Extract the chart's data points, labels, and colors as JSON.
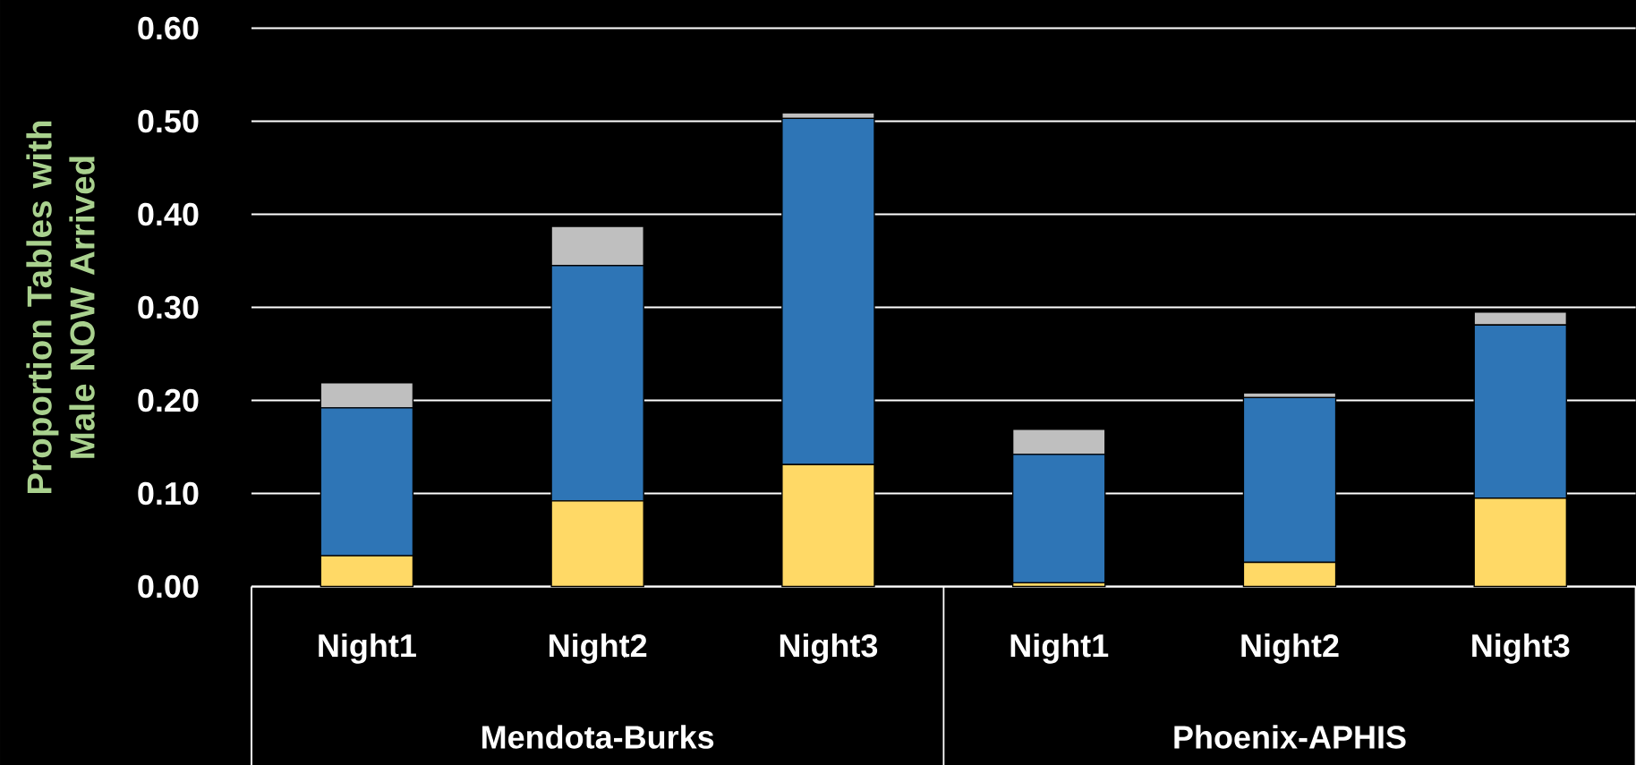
{
  "chart_data": {
    "type": "bar",
    "stacked": true,
    "ylabel": "Proportion Tables with Male NOW Arrived",
    "categories": [
      "Night1",
      "Night2",
      "Night3",
      "Night1",
      "Night2",
      "Night3"
    ],
    "annotations": [
      "Mendota-Burks",
      "Phoenix-APHIS"
    ],
    "series": [
      {
        "color": "#ffd966",
        "values": [
          0.033,
          0.092,
          0.131,
          0.004,
          0.026,
          0.095
        ]
      },
      {
        "color": "#2e75b6",
        "values": [
          0.159,
          0.253,
          0.372,
          0.138,
          0.177,
          0.186
        ]
      },
      {
        "color": "#bfbfbf",
        "values": [
          0.027,
          0.042,
          0.006,
          0.027,
          0.005,
          0.014
        ]
      }
    ],
    "ylim": [
      0,
      0.6
    ],
    "yticks": [
      {
        "value": 0,
        "label": "0.00"
      },
      {
        "value": 0.1,
        "label": "0.10"
      },
      {
        "value": 0.2,
        "label": "0.20"
      },
      {
        "value": 0.3,
        "label": "0.30"
      },
      {
        "value": 0.4,
        "label": "0.40"
      },
      {
        "value": 0.5,
        "label": "0.50"
      },
      {
        "value": 0.6,
        "label": "0.60"
      }
    ],
    "grid": "y"
  }
}
